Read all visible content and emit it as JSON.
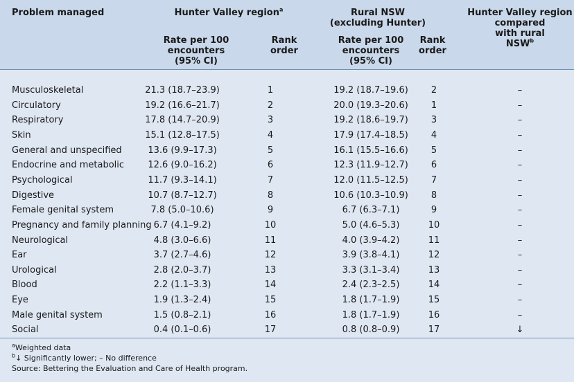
{
  "headers": {
    "problem": "Problem managed",
    "hunter_valley": "Hunter Valley region",
    "hunter_valley_sup": "a",
    "rural_nsw_line1": "Rural NSW",
    "rural_nsw_line2": "(excluding Hunter)",
    "compared_line1": "Hunter Valley region",
    "compared_line2": "compared",
    "compared_line3": "with rural",
    "compared_line4": "NSW",
    "compared_sup": "b",
    "rate_line1": "Rate per 100",
    "rate_line2": "encounters",
    "rate_line3": "(95% CI)",
    "rank_line1": "Rank",
    "rank_line2": "order"
  },
  "rows": [
    {
      "problem": "Musculoskeletal",
      "hv_rate": "21.3 (18.7–23.9)",
      "hv_rank": "1",
      "rn_rate": "19.2 (18.7–19.6)",
      "rn_rank": "2",
      "compare": "–"
    },
    {
      "problem": "Circulatory",
      "hv_rate": "19.2 (16.6–21.7)",
      "hv_rank": "2",
      "rn_rate": "20.0 (19.3–20.6)",
      "rn_rank": "1",
      "compare": "–"
    },
    {
      "problem": "Respiratory",
      "hv_rate": "17.8 (14.7–20.9)",
      "hv_rank": "3",
      "rn_rate": "19.2 (18.6–19.7)",
      "rn_rank": "3",
      "compare": "–"
    },
    {
      "problem": "Skin",
      "hv_rate": "15.1 (12.8–17.5)",
      "hv_rank": "4",
      "rn_rate": "17.9 (17.4–18.5)",
      "rn_rank": "4",
      "compare": "–"
    },
    {
      "problem": "General and unspecified",
      "hv_rate": "13.6 (9.9–17.3)",
      "hv_rank": "5",
      "rn_rate": "16.1 (15.5–16.6)",
      "rn_rank": "5",
      "compare": "–"
    },
    {
      "problem": "Endocrine and metabolic",
      "hv_rate": "12.6 (9.0–16.2)",
      "hv_rank": "6",
      "rn_rate": "12.3 (11.9–12.7)",
      "rn_rank": "6",
      "compare": "–"
    },
    {
      "problem": "Psychological",
      "hv_rate": "11.7 (9.3–14.1)",
      "hv_rank": "7",
      "rn_rate": "12.0 (11.5–12.5)",
      "rn_rank": "7",
      "compare": "–"
    },
    {
      "problem": "Digestive",
      "hv_rate": "10.7 (8.7–12.7)",
      "hv_rank": "8",
      "rn_rate": "10.6 (10.3–10.9)",
      "rn_rank": "8",
      "compare": "–"
    },
    {
      "problem": "Female genital system",
      "hv_rate": "7.8 (5.0–10.6)",
      "hv_rank": "9",
      "rn_rate": "6.7 (6.3–7.1)",
      "rn_rank": "9",
      "compare": "–"
    },
    {
      "problem": "Pregnancy and family planning",
      "hv_rate": "6.7 (4.1–9.2)",
      "hv_rank": "10",
      "rn_rate": "5.0 (4.6–5.3)",
      "rn_rank": "10",
      "compare": "–"
    },
    {
      "problem": "Neurological",
      "hv_rate": "4.8 (3.0–6.6)",
      "hv_rank": "11",
      "rn_rate": "4.0 (3.9–4.2)",
      "rn_rank": "11",
      "compare": "–"
    },
    {
      "problem": "Ear",
      "hv_rate": "3.7 (2.7–4.6)",
      "hv_rank": "12",
      "rn_rate": "3.9 (3.8–4.1)",
      "rn_rank": "12",
      "compare": "–"
    },
    {
      "problem": "Urological",
      "hv_rate": "2.8 (2.0–3.7)",
      "hv_rank": "13",
      "rn_rate": "3.3 (3.1–3.4)",
      "rn_rank": "13",
      "compare": "–"
    },
    {
      "problem": "Blood",
      "hv_rate": "2.2 (1.1–3.3)",
      "hv_rank": "14",
      "rn_rate": "2.4 (2.3–2.5)",
      "rn_rank": "14",
      "compare": "–"
    },
    {
      "problem": "Eye",
      "hv_rate": "1.9 (1.3–2.4)",
      "hv_rank": "15",
      "rn_rate": "1.8 (1.7–1.9)",
      "rn_rank": "15",
      "compare": "–"
    },
    {
      "problem": "Male genital system",
      "hv_rate": "1.5 (0.8–2.1)",
      "hv_rank": "16",
      "rn_rate": "1.8 (1.7–1.9)",
      "rn_rank": "16",
      "compare": "–"
    },
    {
      "problem": "Social",
      "hv_rate": "0.4 (0.1–0.6)",
      "hv_rank": "17",
      "rn_rate": "0.8 (0.8–0.9)",
      "rn_rank": "17",
      "compare": "↓"
    }
  ],
  "footnotes": {
    "a_sup": "a",
    "a_text": "Weighted data",
    "b_sup": "b",
    "b_text": "↓ Significantly lower; – No difference",
    "source": "Source: Bettering the Evaluation and Care of Health program."
  },
  "colors": {
    "header_bg": "#c9d8ea",
    "body_bg": "#dfe7f2",
    "rule": "#6f8fb5"
  }
}
